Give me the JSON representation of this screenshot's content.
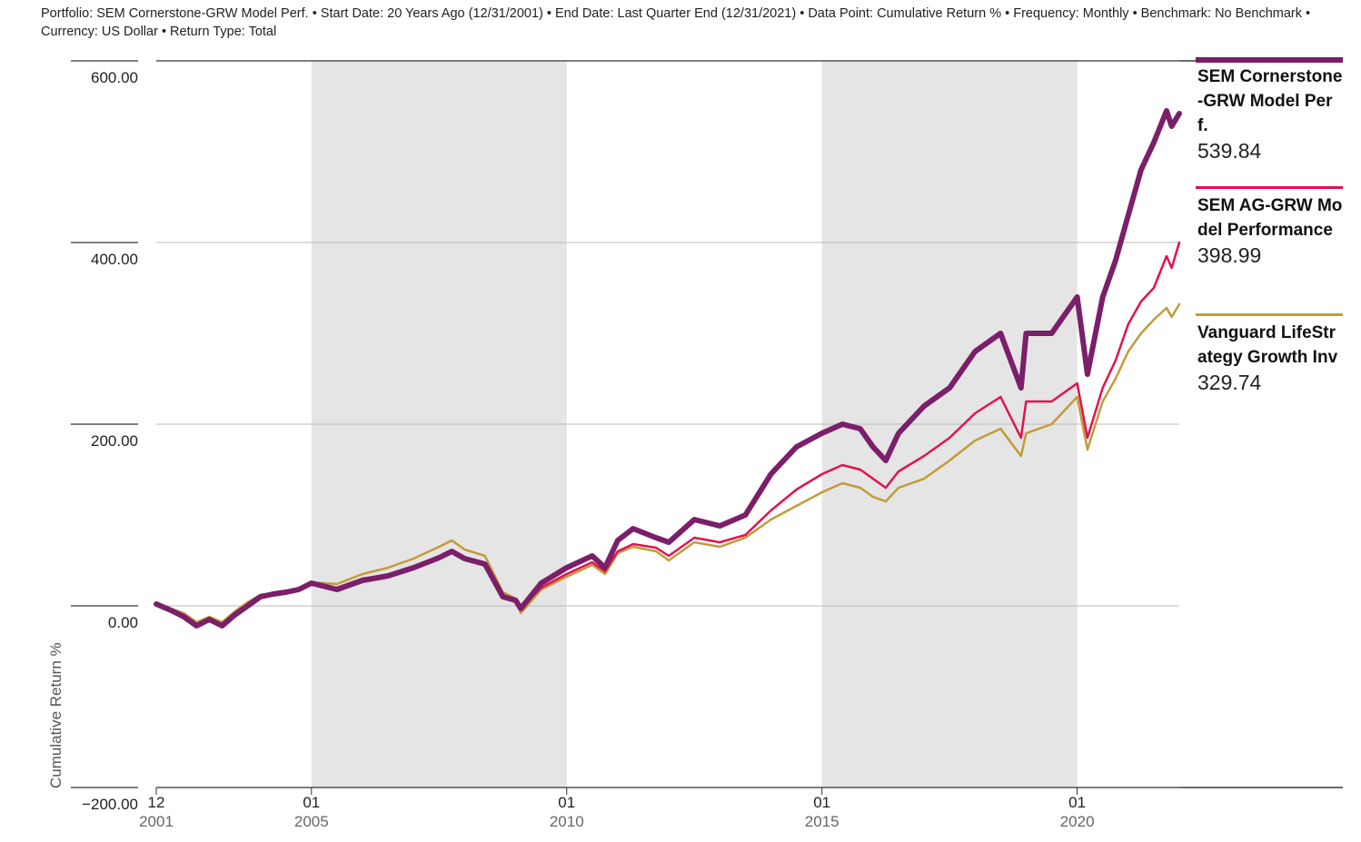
{
  "subtitle": "Portfolio: SEM Cornerstone-GRW Model Perf. • Start Date: 20 Years Ago (12/31/2001) • End Date: Last Quarter End (12/31/2021) • Data Point: Cumulative Return % • Frequency: Monthly • Benchmark: No Benchmark • Currency: US Dollar • Return Type: Total",
  "chart_data": {
    "type": "line",
    "title": "",
    "ylabel": "Cumulative Return %",
    "ylim": [
      -200,
      600
    ],
    "yticks": [
      "600.00",
      "400.00",
      "200.00",
      "0.00",
      "−200.00"
    ],
    "ytick_values": [
      600,
      400,
      200,
      0,
      -200
    ],
    "xlim": [
      2001.96,
      2022.0
    ],
    "xticks": [
      {
        "month": "12",
        "year": "2001",
        "t": 2001.96
      },
      {
        "month": "01",
        "year": "2005",
        "t": 2005.0
      },
      {
        "month": "01",
        "year": "2010",
        "t": 2010.0
      },
      {
        "month": "01",
        "year": "2015",
        "t": 2015.0
      },
      {
        "month": "01",
        "year": "2020",
        "t": 2020.0
      }
    ],
    "shaded_periods": [
      [
        2005.0,
        2010.0
      ],
      [
        2015.0,
        2020.0
      ]
    ],
    "grid": true,
    "legend_position": "right",
    "series": [
      {
        "name": "SEM Cornerstone-GRW Model Perf.",
        "legend_label": "SEM Cornerstone-GRW Model Perf.",
        "final_label": "539.84",
        "color": "#7b1f6a",
        "points": [
          [
            2001.96,
            2
          ],
          [
            2002.25,
            -5
          ],
          [
            2002.5,
            -12
          ],
          [
            2002.75,
            -22
          ],
          [
            2003.0,
            -15
          ],
          [
            2003.25,
            -22
          ],
          [
            2003.5,
            -10
          ],
          [
            2003.75,
            0
          ],
          [
            2004.0,
            10
          ],
          [
            2004.25,
            13
          ],
          [
            2004.5,
            15
          ],
          [
            2004.75,
            18
          ],
          [
            2005.0,
            25
          ],
          [
            2005.5,
            18
          ],
          [
            2006.0,
            28
          ],
          [
            2006.5,
            33
          ],
          [
            2007.0,
            42
          ],
          [
            2007.5,
            53
          ],
          [
            2007.75,
            60
          ],
          [
            2008.0,
            52
          ],
          [
            2008.4,
            46
          ],
          [
            2008.75,
            10
          ],
          [
            2009.0,
            6
          ],
          [
            2009.1,
            -3
          ],
          [
            2009.5,
            25
          ],
          [
            2010.0,
            42
          ],
          [
            2010.5,
            55
          ],
          [
            2010.75,
            42
          ],
          [
            2011.0,
            72
          ],
          [
            2011.3,
            85
          ],
          [
            2011.75,
            75
          ],
          [
            2012.0,
            70
          ],
          [
            2012.5,
            95
          ],
          [
            2013.0,
            88
          ],
          [
            2013.5,
            100
          ],
          [
            2014.0,
            145
          ],
          [
            2014.5,
            175
          ],
          [
            2015.0,
            190
          ],
          [
            2015.4,
            200
          ],
          [
            2015.75,
            195
          ],
          [
            2016.0,
            175
          ],
          [
            2016.25,
            160
          ],
          [
            2016.5,
            190
          ],
          [
            2017.0,
            220
          ],
          [
            2017.5,
            240
          ],
          [
            2018.0,
            280
          ],
          [
            2018.5,
            300
          ],
          [
            2018.9,
            240
          ],
          [
            2019.0,
            300
          ],
          [
            2019.5,
            300
          ],
          [
            2020.0,
            340
          ],
          [
            2020.2,
            255
          ],
          [
            2020.5,
            340
          ],
          [
            2020.75,
            380
          ],
          [
            2021.0,
            430
          ],
          [
            2021.25,
            480
          ],
          [
            2021.5,
            510
          ],
          [
            2021.75,
            545
          ],
          [
            2021.85,
            528
          ],
          [
            2022.0,
            542
          ]
        ]
      },
      {
        "name": "SEM AG-GRW Model Performance",
        "legend_label": "SEM AG-GRW Model Performance",
        "final_label": "398.99",
        "color": "#e0134e",
        "points": [
          [
            2001.96,
            2
          ],
          [
            2002.25,
            -4
          ],
          [
            2002.5,
            -10
          ],
          [
            2002.75,
            -20
          ],
          [
            2003.0,
            -14
          ],
          [
            2003.25,
            -20
          ],
          [
            2003.5,
            -8
          ],
          [
            2003.75,
            2
          ],
          [
            2004.0,
            12
          ],
          [
            2004.25,
            14
          ],
          [
            2004.5,
            16
          ],
          [
            2004.75,
            18
          ],
          [
            2005.0,
            24
          ],
          [
            2005.5,
            20
          ],
          [
            2006.0,
            30
          ],
          [
            2006.5,
            34
          ],
          [
            2007.0,
            42
          ],
          [
            2007.5,
            52
          ],
          [
            2007.75,
            58
          ],
          [
            2008.0,
            52
          ],
          [
            2008.4,
            46
          ],
          [
            2008.75,
            12
          ],
          [
            2009.0,
            6
          ],
          [
            2009.1,
            -3
          ],
          [
            2009.5,
            20
          ],
          [
            2010.0,
            35
          ],
          [
            2010.5,
            48
          ],
          [
            2010.75,
            38
          ],
          [
            2011.0,
            60
          ],
          [
            2011.3,
            68
          ],
          [
            2011.75,
            64
          ],
          [
            2012.0,
            55
          ],
          [
            2012.5,
            75
          ],
          [
            2013.0,
            70
          ],
          [
            2013.5,
            78
          ],
          [
            2014.0,
            105
          ],
          [
            2014.5,
            128
          ],
          [
            2015.0,
            145
          ],
          [
            2015.4,
            155
          ],
          [
            2015.75,
            150
          ],
          [
            2016.0,
            140
          ],
          [
            2016.25,
            130
          ],
          [
            2016.5,
            148
          ],
          [
            2017.0,
            165
          ],
          [
            2017.5,
            185
          ],
          [
            2018.0,
            212
          ],
          [
            2018.5,
            230
          ],
          [
            2018.9,
            185
          ],
          [
            2019.0,
            225
          ],
          [
            2019.5,
            225
          ],
          [
            2020.0,
            245
          ],
          [
            2020.2,
            185
          ],
          [
            2020.5,
            240
          ],
          [
            2020.75,
            270
          ],
          [
            2021.0,
            310
          ],
          [
            2021.25,
            335
          ],
          [
            2021.5,
            350
          ],
          [
            2021.75,
            385
          ],
          [
            2021.85,
            372
          ],
          [
            2022.0,
            400
          ]
        ]
      },
      {
        "name": "Vanguard LifeStrategy Growth Inv",
        "legend_label": "Vanguard LifeStrategy Growth Inv",
        "final_label": "329.74",
        "color": "#c39b3a",
        "points": [
          [
            2001.96,
            2
          ],
          [
            2002.25,
            -3
          ],
          [
            2002.5,
            -8
          ],
          [
            2002.75,
            -18
          ],
          [
            2003.0,
            -12
          ],
          [
            2003.25,
            -18
          ],
          [
            2003.5,
            -6
          ],
          [
            2003.75,
            4
          ],
          [
            2004.0,
            12
          ],
          [
            2004.25,
            14
          ],
          [
            2004.5,
            16
          ],
          [
            2004.75,
            18
          ],
          [
            2005.0,
            26
          ],
          [
            2005.5,
            24
          ],
          [
            2006.0,
            35
          ],
          [
            2006.5,
            42
          ],
          [
            2007.0,
            52
          ],
          [
            2007.5,
            65
          ],
          [
            2007.75,
            72
          ],
          [
            2008.0,
            62
          ],
          [
            2008.4,
            55
          ],
          [
            2008.75,
            15
          ],
          [
            2009.0,
            8
          ],
          [
            2009.1,
            -8
          ],
          [
            2009.5,
            18
          ],
          [
            2010.0,
            32
          ],
          [
            2010.5,
            45
          ],
          [
            2010.75,
            35
          ],
          [
            2011.0,
            58
          ],
          [
            2011.3,
            65
          ],
          [
            2011.75,
            60
          ],
          [
            2012.0,
            50
          ],
          [
            2012.5,
            70
          ],
          [
            2013.0,
            65
          ],
          [
            2013.5,
            75
          ],
          [
            2014.0,
            95
          ],
          [
            2014.5,
            110
          ],
          [
            2015.0,
            125
          ],
          [
            2015.4,
            135
          ],
          [
            2015.75,
            130
          ],
          [
            2016.0,
            120
          ],
          [
            2016.25,
            115
          ],
          [
            2016.5,
            130
          ],
          [
            2017.0,
            140
          ],
          [
            2017.5,
            160
          ],
          [
            2018.0,
            182
          ],
          [
            2018.5,
            195
          ],
          [
            2018.9,
            165
          ],
          [
            2019.0,
            190
          ],
          [
            2019.5,
            200
          ],
          [
            2020.0,
            230
          ],
          [
            2020.2,
            172
          ],
          [
            2020.5,
            225
          ],
          [
            2020.75,
            250
          ],
          [
            2021.0,
            280
          ],
          [
            2021.25,
            300
          ],
          [
            2021.5,
            315
          ],
          [
            2021.75,
            328
          ],
          [
            2021.85,
            318
          ],
          [
            2022.0,
            332
          ]
        ]
      }
    ]
  }
}
